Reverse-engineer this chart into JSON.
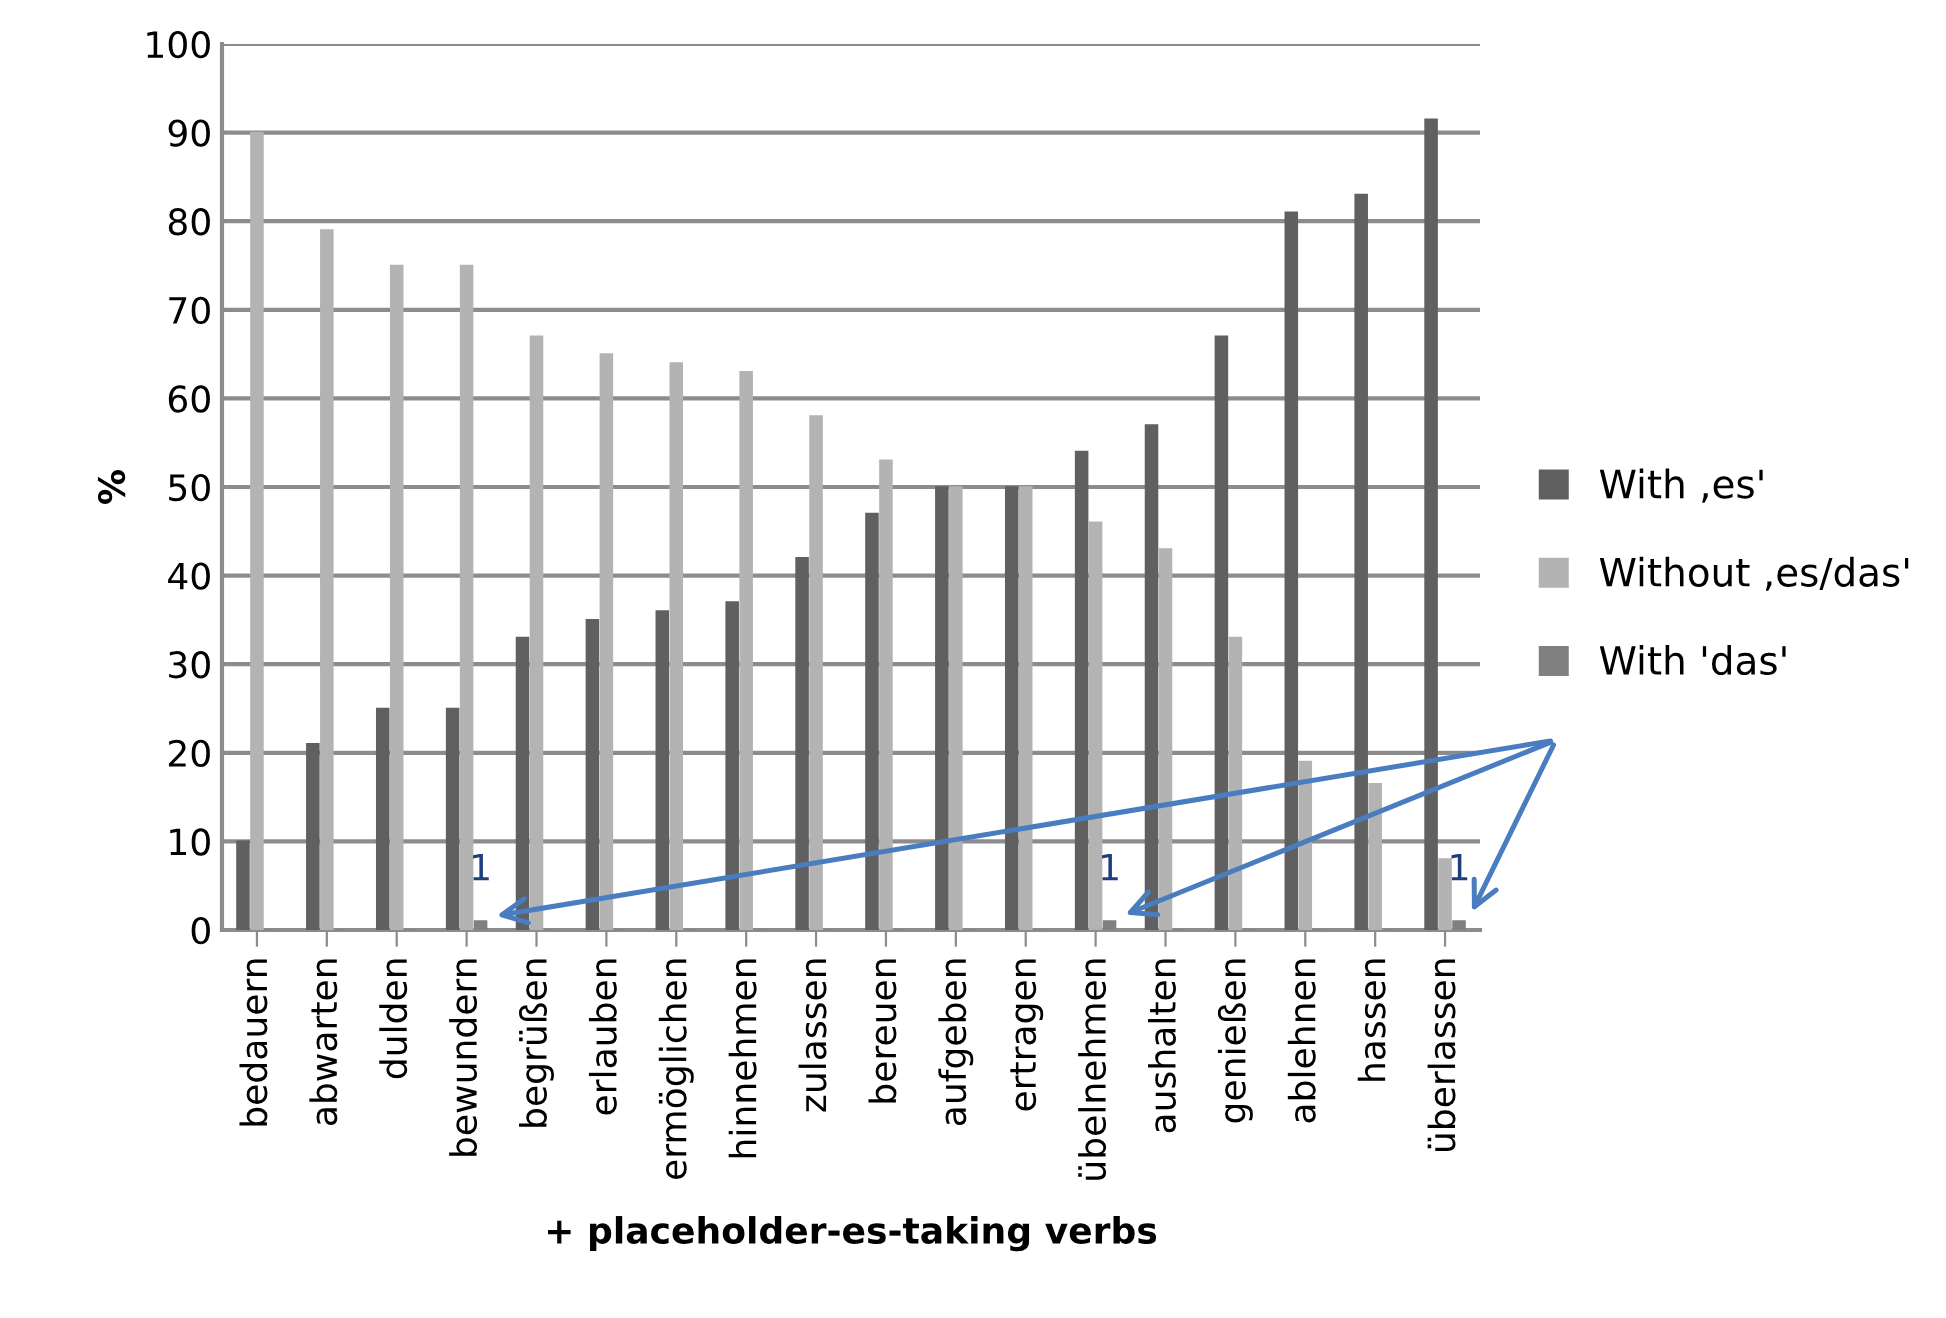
{
  "chart_data": {
    "type": "bar",
    "ylabel": "%",
    "xlabel": "+ placeholder-es-taking verbs",
    "categories": [
      "bedauern",
      "abwarten",
      "dulden",
      "bewundern",
      "begrüßen",
      "erlauben",
      "ermöglichen",
      "hinnehmen",
      "zulassen",
      "bereuen",
      "aufgeben",
      "ertragen",
      "übelnehmen",
      "aushalten",
      "genießen",
      "ablehnen",
      "hassen",
      "überlassen"
    ],
    "series": [
      {
        "name": "With ,es'",
        "color": "#606060",
        "values": [
          10,
          21,
          25,
          25,
          33,
          35,
          36,
          37,
          42,
          47,
          50,
          50,
          54,
          57,
          67,
          81,
          83,
          91.5
        ]
      },
      {
        "name": "Without ,es/das'",
        "color": "#b3b3b3",
        "values": [
          90,
          79,
          75,
          75,
          67,
          65,
          64,
          63,
          58,
          53,
          50,
          50,
          46,
          43,
          33,
          19,
          16.5,
          8
        ]
      },
      {
        "name": "With 'das'",
        "color": "#808080",
        "values": [
          0,
          0,
          0,
          1,
          0,
          0,
          0,
          0,
          0,
          0,
          0,
          0,
          1,
          0,
          0,
          0,
          0,
          1
        ],
        "value_labels": [
          null,
          null,
          null,
          "1",
          null,
          null,
          null,
          null,
          null,
          null,
          null,
          null,
          "1",
          null,
          null,
          null,
          null,
          "1"
        ]
      }
    ],
    "ylim": [
      0,
      100
    ],
    "yticks": [
      0,
      10,
      20,
      30,
      40,
      50,
      60,
      70,
      80,
      90,
      100
    ],
    "grid": "y",
    "legend": "right"
  }
}
